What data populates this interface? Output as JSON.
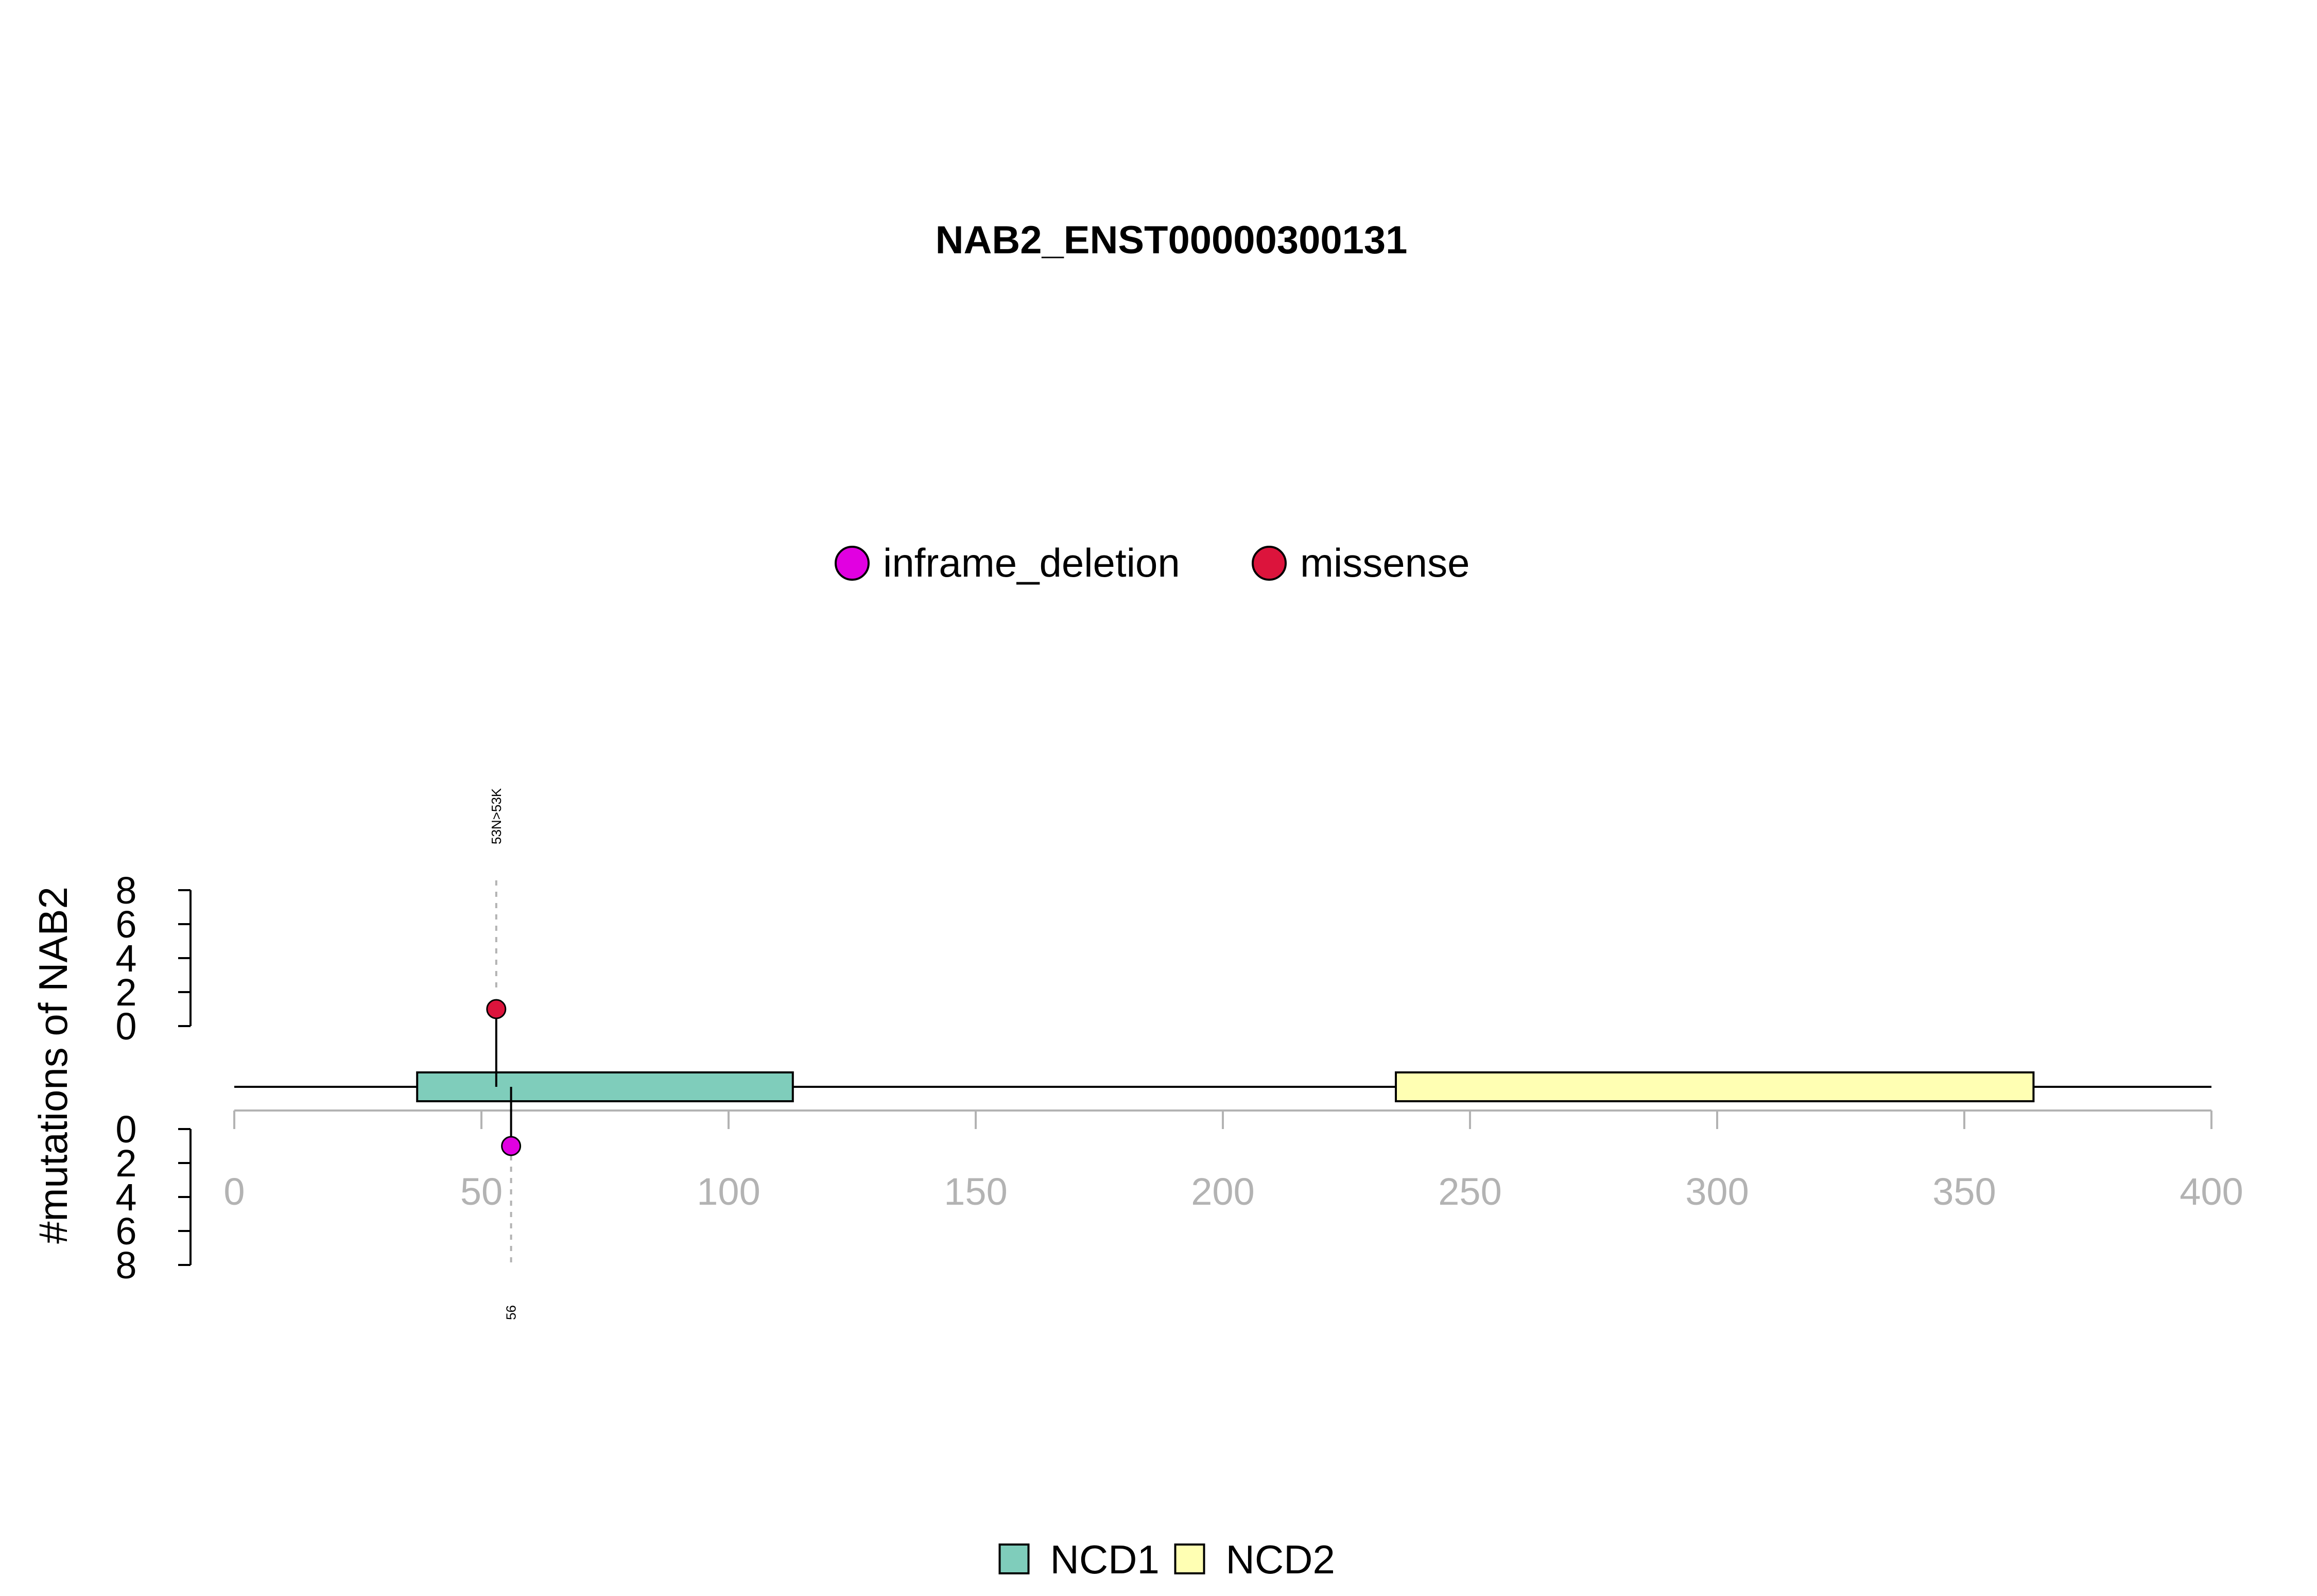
{
  "chart_data": {
    "type": "lollipop",
    "title": "NAB2_ENST00000300131",
    "ylabel": "#mutations of NAB2",
    "protein_length": 400,
    "xlim": [
      0,
      400
    ],
    "xticks": [
      0,
      50,
      100,
      150,
      200,
      250,
      300,
      350,
      400
    ],
    "y_upper_ticks": [
      0,
      2,
      4,
      6,
      8
    ],
    "y_lower_ticks": [
      0,
      2,
      4,
      6,
      8
    ],
    "ylim": [
      0,
      8
    ],
    "mutation_legend": [
      {
        "name": "inframe_deletion",
        "color": "#E100E1"
      },
      {
        "name": "missense",
        "color": "#DC143C"
      }
    ],
    "domain_legend": [
      {
        "name": "NCD1",
        "color": "#7FCDBB"
      },
      {
        "name": "NCD2",
        "color": "#FFFFB3"
      }
    ],
    "domains": [
      {
        "name": "NCD1",
        "start": 37,
        "end": 113,
        "color": "#7FCDBB"
      },
      {
        "name": "NCD2",
        "start": 235,
        "end": 364,
        "color": "#FFFFB3"
      }
    ],
    "mutations": [
      {
        "position": 53,
        "count": 1,
        "type": "missense",
        "side": "upper",
        "label": "53N>53K",
        "color": "#DC143C"
      },
      {
        "position": 56,
        "count": 1,
        "type": "inframe_deletion",
        "side": "lower",
        "label": "56",
        "color": "#E100E1"
      }
    ],
    "colors": {
      "axis_gray": "#b3b3b3",
      "guide_gray": "#b3b3b3",
      "black": "#000000"
    }
  }
}
